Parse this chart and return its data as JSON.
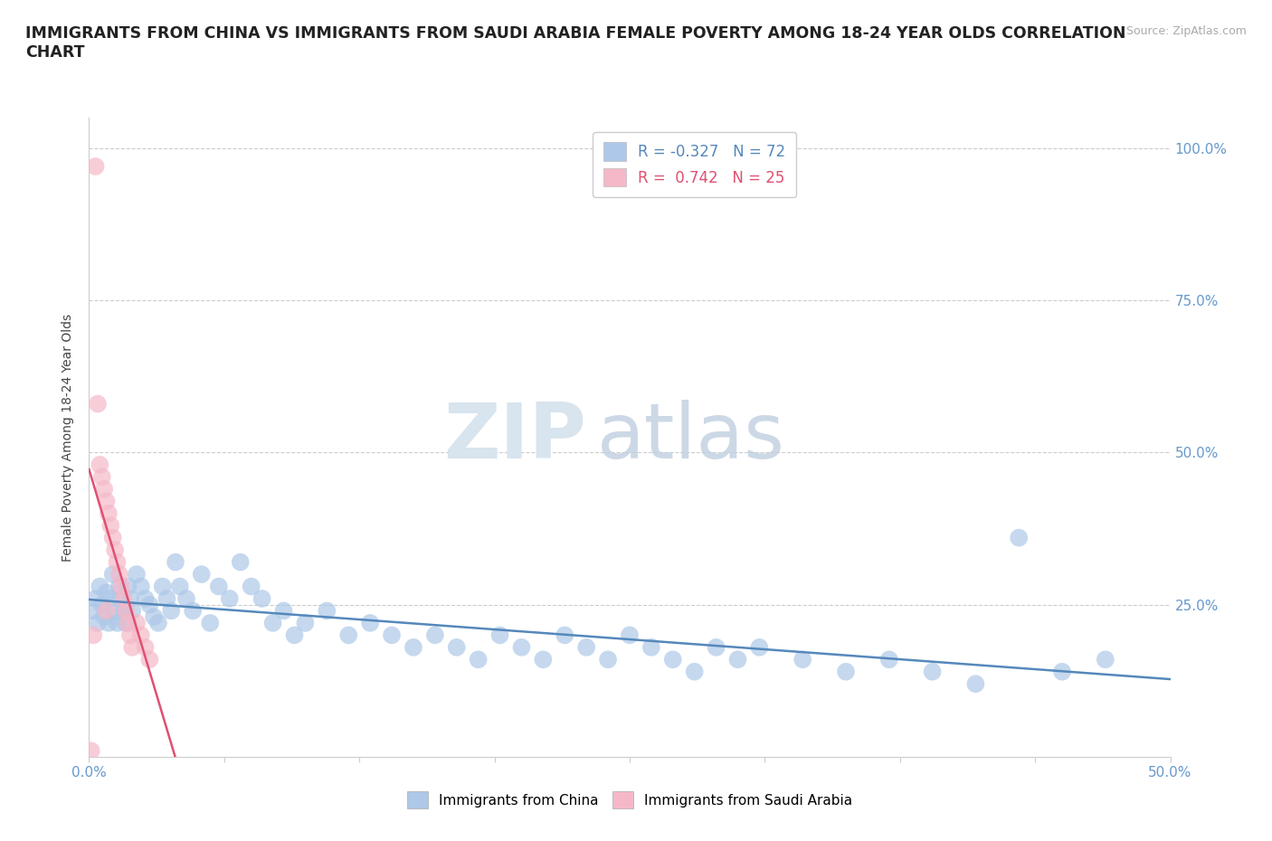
{
  "title_line1": "IMMIGRANTS FROM CHINA VS IMMIGRANTS FROM SAUDI ARABIA FEMALE POVERTY AMONG 18-24 YEAR OLDS CORRELATION",
  "title_line2": "CHART",
  "source": "Source: ZipAtlas.com",
  "ylabel_label": "Female Poverty Among 18-24 Year Olds",
  "xlim": [
    0.0,
    0.5
  ],
  "ylim": [
    0.0,
    1.05
  ],
  "background_color": "#ffffff",
  "china_color": "#adc8e8",
  "saudi_color": "#f5b8c8",
  "china_line_color": "#5588bb",
  "saudi_line_color": "#e05070",
  "china_R": -0.327,
  "china_N": 72,
  "saudi_R": 0.742,
  "saudi_N": 25,
  "legend_china_label": "Immigrants from China",
  "legend_saudi_label": "Immigrants from Saudi Arabia",
  "watermark_ZIP": "ZIP",
  "watermark_atlas": "atlas",
  "tick_color": "#6699cc",
  "axis_label_color": "#444444",
  "title_fontsize": 12.5,
  "tick_fontsize": 11,
  "china_x": [
    0.002,
    0.003,
    0.004,
    0.005,
    0.006,
    0.007,
    0.008,
    0.009,
    0.01,
    0.011,
    0.012,
    0.013,
    0.014,
    0.015,
    0.016,
    0.017,
    0.018,
    0.019,
    0.02,
    0.022,
    0.024,
    0.026,
    0.028,
    0.03,
    0.032,
    0.034,
    0.036,
    0.038,
    0.04,
    0.042,
    0.045,
    0.048,
    0.052,
    0.056,
    0.06,
    0.065,
    0.07,
    0.075,
    0.08,
    0.085,
    0.09,
    0.095,
    0.1,
    0.11,
    0.12,
    0.13,
    0.14,
    0.15,
    0.16,
    0.17,
    0.18,
    0.19,
    0.2,
    0.21,
    0.22,
    0.23,
    0.24,
    0.25,
    0.26,
    0.27,
    0.28,
    0.29,
    0.3,
    0.31,
    0.33,
    0.35,
    0.37,
    0.39,
    0.41,
    0.43,
    0.45,
    0.47
  ],
  "china_y": [
    0.24,
    0.26,
    0.22,
    0.28,
    0.25,
    0.23,
    0.27,
    0.22,
    0.26,
    0.3,
    0.24,
    0.22,
    0.28,
    0.26,
    0.24,
    0.22,
    0.28,
    0.26,
    0.24,
    0.3,
    0.28,
    0.26,
    0.25,
    0.23,
    0.22,
    0.28,
    0.26,
    0.24,
    0.32,
    0.28,
    0.26,
    0.24,
    0.3,
    0.22,
    0.28,
    0.26,
    0.32,
    0.28,
    0.26,
    0.22,
    0.24,
    0.2,
    0.22,
    0.24,
    0.2,
    0.22,
    0.2,
    0.18,
    0.2,
    0.18,
    0.16,
    0.2,
    0.18,
    0.16,
    0.2,
    0.18,
    0.16,
    0.2,
    0.18,
    0.16,
    0.14,
    0.18,
    0.16,
    0.18,
    0.16,
    0.14,
    0.16,
    0.14,
    0.12,
    0.36,
    0.14,
    0.16
  ],
  "saudi_x": [
    0.001,
    0.002,
    0.003,
    0.004,
    0.005,
    0.006,
    0.007,
    0.008,
    0.009,
    0.01,
    0.011,
    0.012,
    0.013,
    0.014,
    0.015,
    0.016,
    0.017,
    0.018,
    0.019,
    0.02,
    0.022,
    0.024,
    0.026,
    0.028,
    0.008
  ],
  "saudi_y": [
    0.01,
    0.2,
    0.97,
    0.58,
    0.48,
    0.46,
    0.44,
    0.42,
    0.4,
    0.38,
    0.36,
    0.34,
    0.32,
    0.3,
    0.28,
    0.26,
    0.24,
    0.22,
    0.2,
    0.18,
    0.22,
    0.2,
    0.18,
    0.16,
    0.24
  ]
}
